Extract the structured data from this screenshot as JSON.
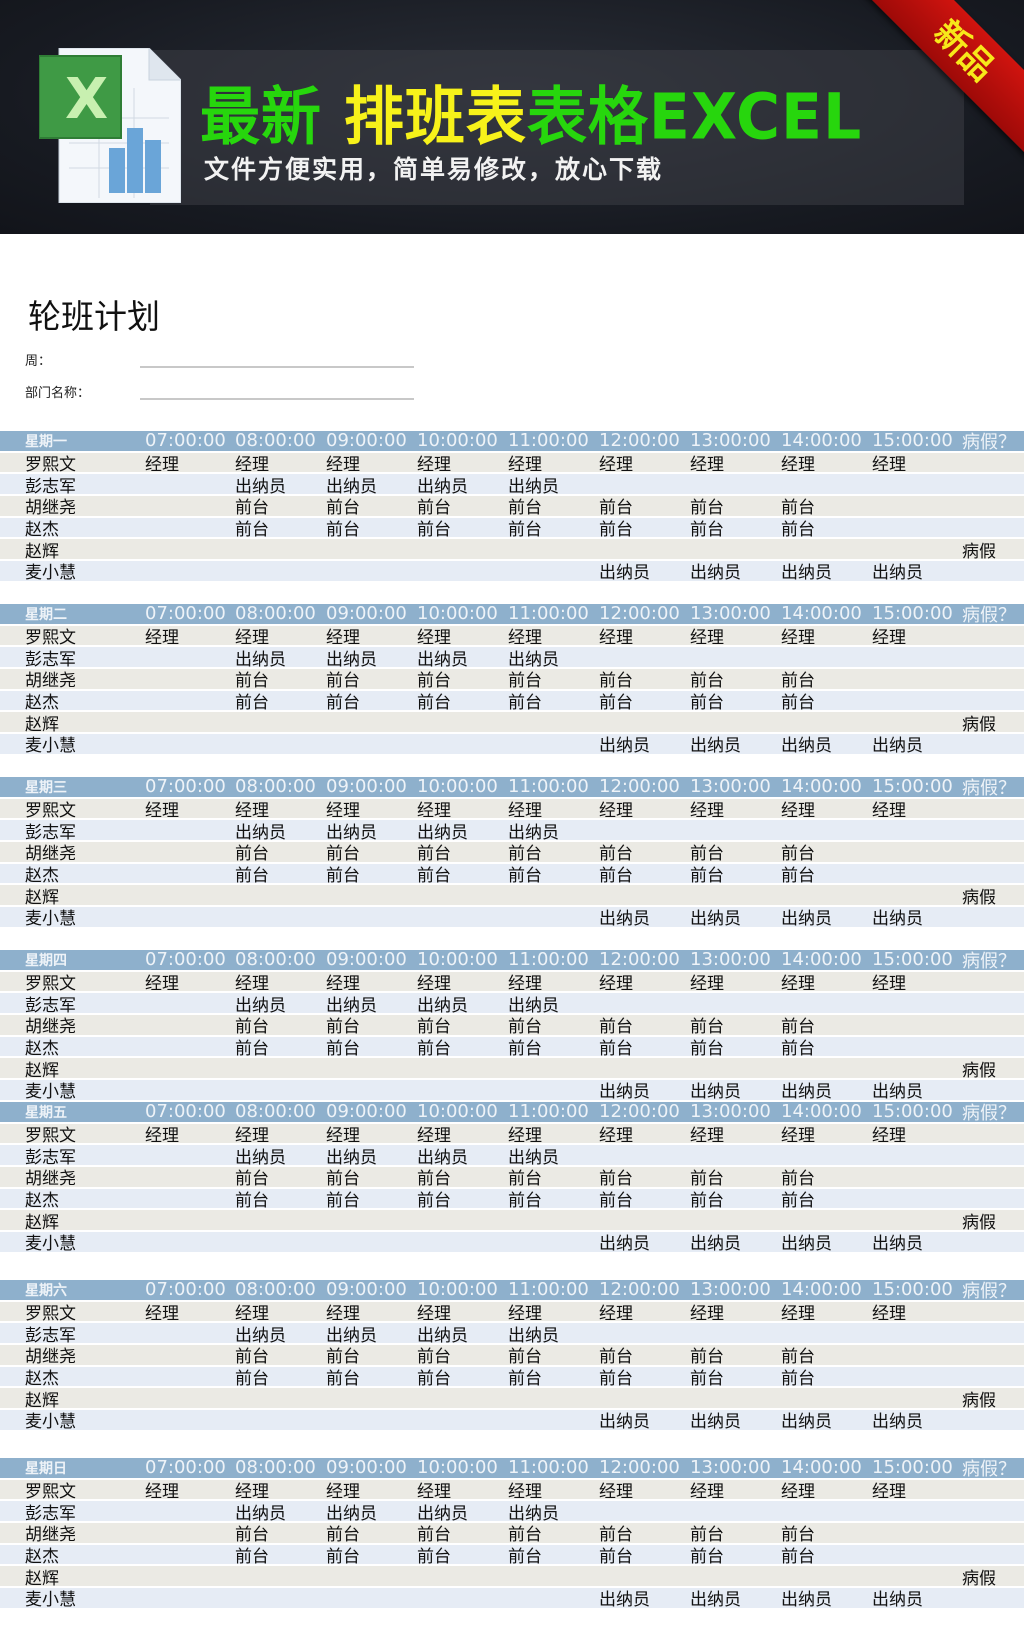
{
  "banner": {
    "title_part1": "最新",
    "title_part2": "排班表",
    "title_part3": "表格EXCEL",
    "subtitle": "文件方便实用，简单易修改，放心下载",
    "ribbon": "新品",
    "icon": "excel-file-icon"
  },
  "page_title": "轮班计划",
  "fields": {
    "week_label": "周：",
    "dept_label": "部门名称：",
    "week_value": "",
    "dept_value": ""
  },
  "columns": [
    "07:00:00",
    "08:00:00",
    "09:00:00",
    "10:00:00",
    "11:00:00",
    "12:00:00",
    "13:00:00",
    "14:00:00",
    "15:00:00",
    "病假？"
  ],
  "days": [
    {
      "label": "星期一"
    },
    {
      "label": "星期二"
    },
    {
      "label": "星期三"
    },
    {
      "label": "星期四"
    },
    {
      "label": "星期五"
    },
    {
      "label": "星期六"
    },
    {
      "label": "星期日"
    }
  ],
  "rows": [
    {
      "name": "罗熙文",
      "shifts": [
        "经理",
        "经理",
        "经理",
        "经理",
        "经理",
        "经理",
        "经理",
        "经理",
        "经理",
        ""
      ]
    },
    {
      "name": "彭志军",
      "shifts": [
        "",
        "出纳员",
        "出纳员",
        "出纳员",
        "出纳员",
        "",
        "",
        "",
        "",
        ""
      ]
    },
    {
      "name": "胡继尧",
      "shifts": [
        "",
        "前台",
        "前台",
        "前台",
        "前台",
        "前台",
        "前台",
        "前台",
        "",
        ""
      ]
    },
    {
      "name": "赵杰",
      "shifts": [
        "",
        "前台",
        "前台",
        "前台",
        "前台",
        "前台",
        "前台",
        "前台",
        "",
        ""
      ]
    },
    {
      "name": "赵辉",
      "shifts": [
        "",
        "",
        "",
        "",
        "",
        "",
        "",
        "",
        "",
        "病假"
      ]
    },
    {
      "name": "麦小慧",
      "shifts": [
        "",
        "",
        "",
        "",
        "",
        "出纳员",
        "出纳员",
        "出纳员",
        "出纳员",
        ""
      ]
    }
  ],
  "colors": {
    "header_bg": "#8eb0cc",
    "row_odd": "#ebeae4",
    "row_even": "#e6ecf5",
    "title_green": "#27d60d",
    "title_yellow": "#f7f21a",
    "ribbon_red": "#c0100c"
  }
}
